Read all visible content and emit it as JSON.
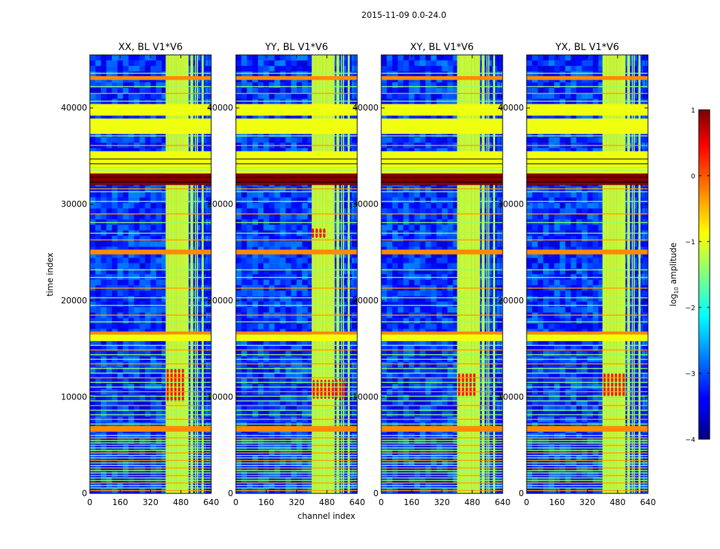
{
  "figure": {
    "suptitle": "2015-11-09 0.0-24.0",
    "xlabel": "channel index",
    "ylabel": "time index"
  },
  "chart_data": [
    {
      "type": "heatmap",
      "title": "XX, BL V1*V6",
      "xlim": [
        0,
        640
      ],
      "ylim": [
        0,
        45500
      ],
      "xticks": [
        "0",
        "160",
        "320",
        "480",
        "640"
      ],
      "yticks": [
        "0",
        "10000",
        "20000",
        "30000",
        "40000"
      ],
      "rfi_channels": [
        [
          400,
          520
        ],
        [
          530,
          545
        ],
        [
          555,
          570
        ],
        [
          590,
          600
        ]
      ],
      "hot_channel_blocks": [
        [
          405,
          500,
          9500,
          13000
        ]
      ]
    },
    {
      "type": "heatmap",
      "title": "YY, BL V1*V6",
      "xlim": [
        0,
        640
      ],
      "ylim": [
        0,
        45500
      ],
      "xticks": [
        "0",
        "160",
        "320",
        "480",
        "640"
      ],
      "yticks": [
        "0",
        "10000",
        "20000",
        "30000",
        "40000"
      ],
      "rfi_channels": [
        [
          400,
          520
        ],
        [
          530,
          545
        ],
        [
          555,
          570
        ],
        [
          590,
          600
        ]
      ],
      "hot_channel_blocks": [
        [
          405,
          580,
          9800,
          11800
        ],
        [
          400,
          480,
          26500,
          27500
        ]
      ]
    },
    {
      "type": "heatmap",
      "title": "XY, BL V1*V6",
      "xlim": [
        0,
        640
      ],
      "ylim": [
        0,
        45500
      ],
      "xticks": [
        "0",
        "160",
        "320",
        "480",
        "640"
      ],
      "yticks": [
        "0",
        "10000",
        "20000",
        "30000",
        "40000"
      ],
      "rfi_channels": [
        [
          400,
          520
        ],
        [
          530,
          545
        ],
        [
          555,
          570
        ],
        [
          590,
          600
        ]
      ],
      "hot_channel_blocks": [
        [
          405,
          500,
          10000,
          12500
        ]
      ]
    },
    {
      "type": "heatmap",
      "title": "YX, BL V1*V6",
      "xlim": [
        0,
        640
      ],
      "ylim": [
        0,
        45500
      ],
      "xticks": [
        "0",
        "160",
        "320",
        "480",
        "640"
      ],
      "yticks": [
        "0",
        "10000",
        "20000",
        "30000",
        "40000"
      ],
      "rfi_channels": [
        [
          400,
          520
        ],
        [
          530,
          545
        ],
        [
          555,
          570
        ],
        [
          590,
          600
        ]
      ],
      "hot_channel_blocks": [
        [
          405,
          520,
          10000,
          12500
        ]
      ]
    }
  ],
  "row_bands": [
    {
      "y0": 32000,
      "y1": 33200,
      "level": 1.0
    },
    {
      "y0": 33200,
      "y1": 35500,
      "level": -0.95
    },
    {
      "y0": 37300,
      "y1": 38900,
      "level": -0.95
    },
    {
      "y0": 39200,
      "y1": 40400,
      "level": -0.95
    },
    {
      "y0": 24800,
      "y1": 25300,
      "level": -0.3
    },
    {
      "y0": 15800,
      "y1": 16500,
      "level": -0.95
    },
    {
      "y0": 16500,
      "y1": 16800,
      "level": -0.3
    },
    {
      "y0": 6400,
      "y1": 7000,
      "level": -0.3
    },
    {
      "y0": 42900,
      "y1": 43300,
      "level": -0.3
    }
  ],
  "colorbar": {
    "label": "log$_{10}$ amplitude",
    "label_main": "log",
    "label_sub": "10",
    "label_rest": " amplitude",
    "range": [
      -4,
      1
    ],
    "ticks": [
      "1",
      "0",
      "−1",
      "−2",
      "−3",
      "−4"
    ],
    "colormap": "jet"
  }
}
